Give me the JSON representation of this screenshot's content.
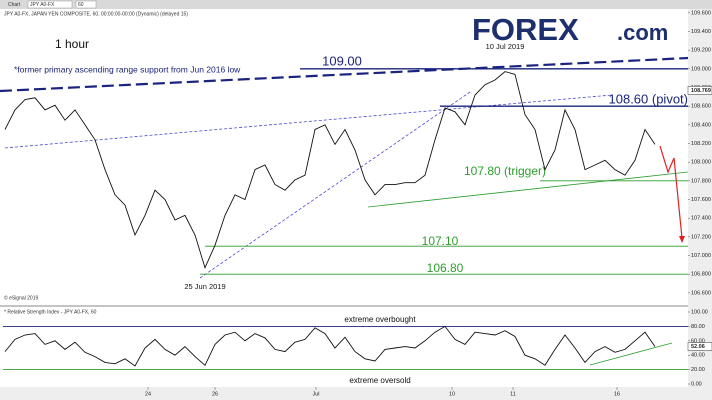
{
  "toolbar": {
    "tab": "Chart",
    "symbol": "JPY A0-FX",
    "interval": "60"
  },
  "logo": {
    "brand": "FOREX",
    "suffix": ".com"
  },
  "chart_data": [
    {
      "type": "line",
      "title": "JPY A0-FX, JAPAN YEN COMPOSITE, 60, 00:00:00-00:00 (Dynamic) (delayed 15)",
      "subtitle": "1 hour",
      "note": "*former  primary ascending range support from Jun 2016 low",
      "annotations": [
        {
          "text": "10 Jul 2019",
          "x": 50
        },
        {
          "text": "25 Jun 2019",
          "x": 20
        }
      ],
      "levels": [
        {
          "value": 109.0,
          "label": "109.00",
          "color": "#1a237e"
        },
        {
          "value": 108.6,
          "label": "108.60 (pivot)",
          "color": "#1a237e"
        },
        {
          "value": 107.8,
          "label": "107.80 (trigger)",
          "color": "#2e9e2e"
        },
        {
          "value": 107.1,
          "label": "107.10",
          "color": "#2e9e2e"
        },
        {
          "value": 106.8,
          "label": "106.80",
          "color": "#2e9e2e"
        }
      ],
      "last_price": {
        "value": 108.769,
        "label": "108.769"
      },
      "credit": "© eSignal 2019",
      "x": [
        0,
        1,
        2,
        3,
        4,
        5,
        6,
        7,
        8,
        9,
        10,
        11,
        12,
        13,
        14,
        15,
        16,
        17,
        18,
        19,
        20,
        21,
        22,
        23,
        24,
        25,
        26,
        27,
        28,
        29,
        30,
        31,
        32,
        33,
        34,
        35,
        36,
        37,
        38,
        39,
        40,
        41,
        42,
        43,
        44,
        45,
        46,
        47,
        48,
        49,
        50,
        51,
        52,
        53,
        54,
        55,
        56,
        57,
        58,
        59,
        60,
        61,
        62,
        63,
        64,
        65
      ],
      "series": [
        {
          "name": "JPY A0-FX",
          "color": "#111111",
          "values": [
            108.35,
            108.56,
            108.67,
            108.69,
            108.56,
            108.61,
            108.45,
            108.56,
            108.4,
            108.24,
            107.92,
            107.65,
            107.54,
            107.22,
            107.43,
            107.7,
            107.6,
            107.38,
            107.43,
            107.22,
            106.87,
            107.11,
            107.43,
            107.65,
            107.6,
            107.92,
            107.97,
            107.76,
            107.7,
            107.81,
            107.86,
            108.35,
            108.4,
            108.19,
            108.35,
            108.13,
            107.81,
            107.65,
            107.76,
            107.76,
            107.78,
            107.78,
            107.86,
            108.24,
            108.58,
            108.54,
            108.4,
            108.72,
            108.83,
            108.88,
            108.97,
            108.94,
            108.51,
            108.35,
            107.92,
            108.13,
            108.56,
            108.35,
            107.92,
            107.97,
            108.02,
            107.92,
            107.86,
            108.02,
            108.35,
            108.19
          ]
        }
      ],
      "xlim": [
        -0.2,
        68.3
      ],
      "xticks": [
        {
          "value": 14.3,
          "label": "24"
        },
        {
          "value": 21,
          "label": "26"
        },
        {
          "value": 31.1,
          "label": "Jul"
        },
        {
          "value": 44.7,
          "label": "10"
        },
        {
          "value": 50.8,
          "label": "11"
        },
        {
          "value": 61.2,
          "label": "16"
        }
      ],
      "ylim": [
        106.47,
        109.63
      ],
      "yticks": [
        {
          "value": 106.6,
          "label": "106.600"
        },
        {
          "value": 106.8,
          "label": "106.800"
        },
        {
          "value": 107.0,
          "label": "107.000"
        },
        {
          "value": 107.2,
          "label": "107.200"
        },
        {
          "value": 107.4,
          "label": "107.400"
        },
        {
          "value": 107.6,
          "label": "107.600"
        },
        {
          "value": 107.8,
          "label": "107.800"
        },
        {
          "value": 108.0,
          "label": "108.000"
        },
        {
          "value": 108.2,
          "label": "108.200"
        },
        {
          "value": 108.4,
          "label": "108.400"
        },
        {
          "value": 108.6,
          "label": "108.600"
        },
        {
          "value": 108.8,
          "label": "108.800"
        },
        {
          "value": 109.0,
          "label": "109.000"
        },
        {
          "value": 109.2,
          "label": "109.200"
        },
        {
          "value": 109.4,
          "label": "109.400"
        },
        {
          "value": 109.6,
          "label": "109.600"
        }
      ]
    },
    {
      "type": "line",
      "title": "* Relative Strength Index - JPY A0-FX, 60",
      "annotations": [
        {
          "text": "extreme overbought"
        },
        {
          "text": "extreme oversold"
        }
      ],
      "levels": [
        {
          "value": 80,
          "color": "#1a237e"
        },
        {
          "value": 20,
          "color": "#2e9e2e"
        }
      ],
      "last_value": {
        "value": 52.06,
        "label": "52.06"
      },
      "x": [
        0,
        1,
        2,
        3,
        4,
        5,
        6,
        7,
        8,
        9,
        10,
        11,
        12,
        13,
        14,
        15,
        16,
        17,
        18,
        19,
        20,
        21,
        22,
        23,
        24,
        25,
        26,
        27,
        28,
        29,
        30,
        31,
        32,
        33,
        34,
        35,
        36,
        37,
        38,
        39,
        40,
        41,
        42,
        43,
        44,
        45,
        46,
        47,
        48,
        49,
        50,
        51,
        52,
        53,
        54,
        55,
        56,
        57,
        58,
        59,
        60,
        61,
        62,
        63,
        64,
        65
      ],
      "series": [
        {
          "name": "RSI",
          "color": "#111111",
          "values": [
            45,
            62,
            68,
            70,
            55,
            60,
            48,
            58,
            44,
            38,
            30,
            28,
            35,
            25,
            50,
            62,
            48,
            40,
            52,
            38,
            26,
            55,
            68,
            72,
            60,
            70,
            64,
            48,
            45,
            58,
            62,
            78,
            70,
            50,
            65,
            45,
            35,
            32,
            48,
            50,
            52,
            50,
            60,
            72,
            80,
            62,
            55,
            72,
            70,
            68,
            74,
            66,
            40,
            35,
            26,
            48,
            68,
            50,
            30,
            45,
            52,
            44,
            48,
            60,
            72,
            52
          ]
        }
      ],
      "xlim": [
        -0.2,
        68.3
      ],
      "ylim": [
        0,
        100
      ],
      "yticks": [
        {
          "value": 0,
          "label": "0.00"
        },
        {
          "value": 20,
          "label": "20.00"
        },
        {
          "value": 40,
          "label": "40.00"
        },
        {
          "value": 60,
          "label": "60.00"
        },
        {
          "value": 80,
          "label": "80.00"
        },
        {
          "value": 100,
          "label": "100.00"
        }
      ]
    }
  ]
}
